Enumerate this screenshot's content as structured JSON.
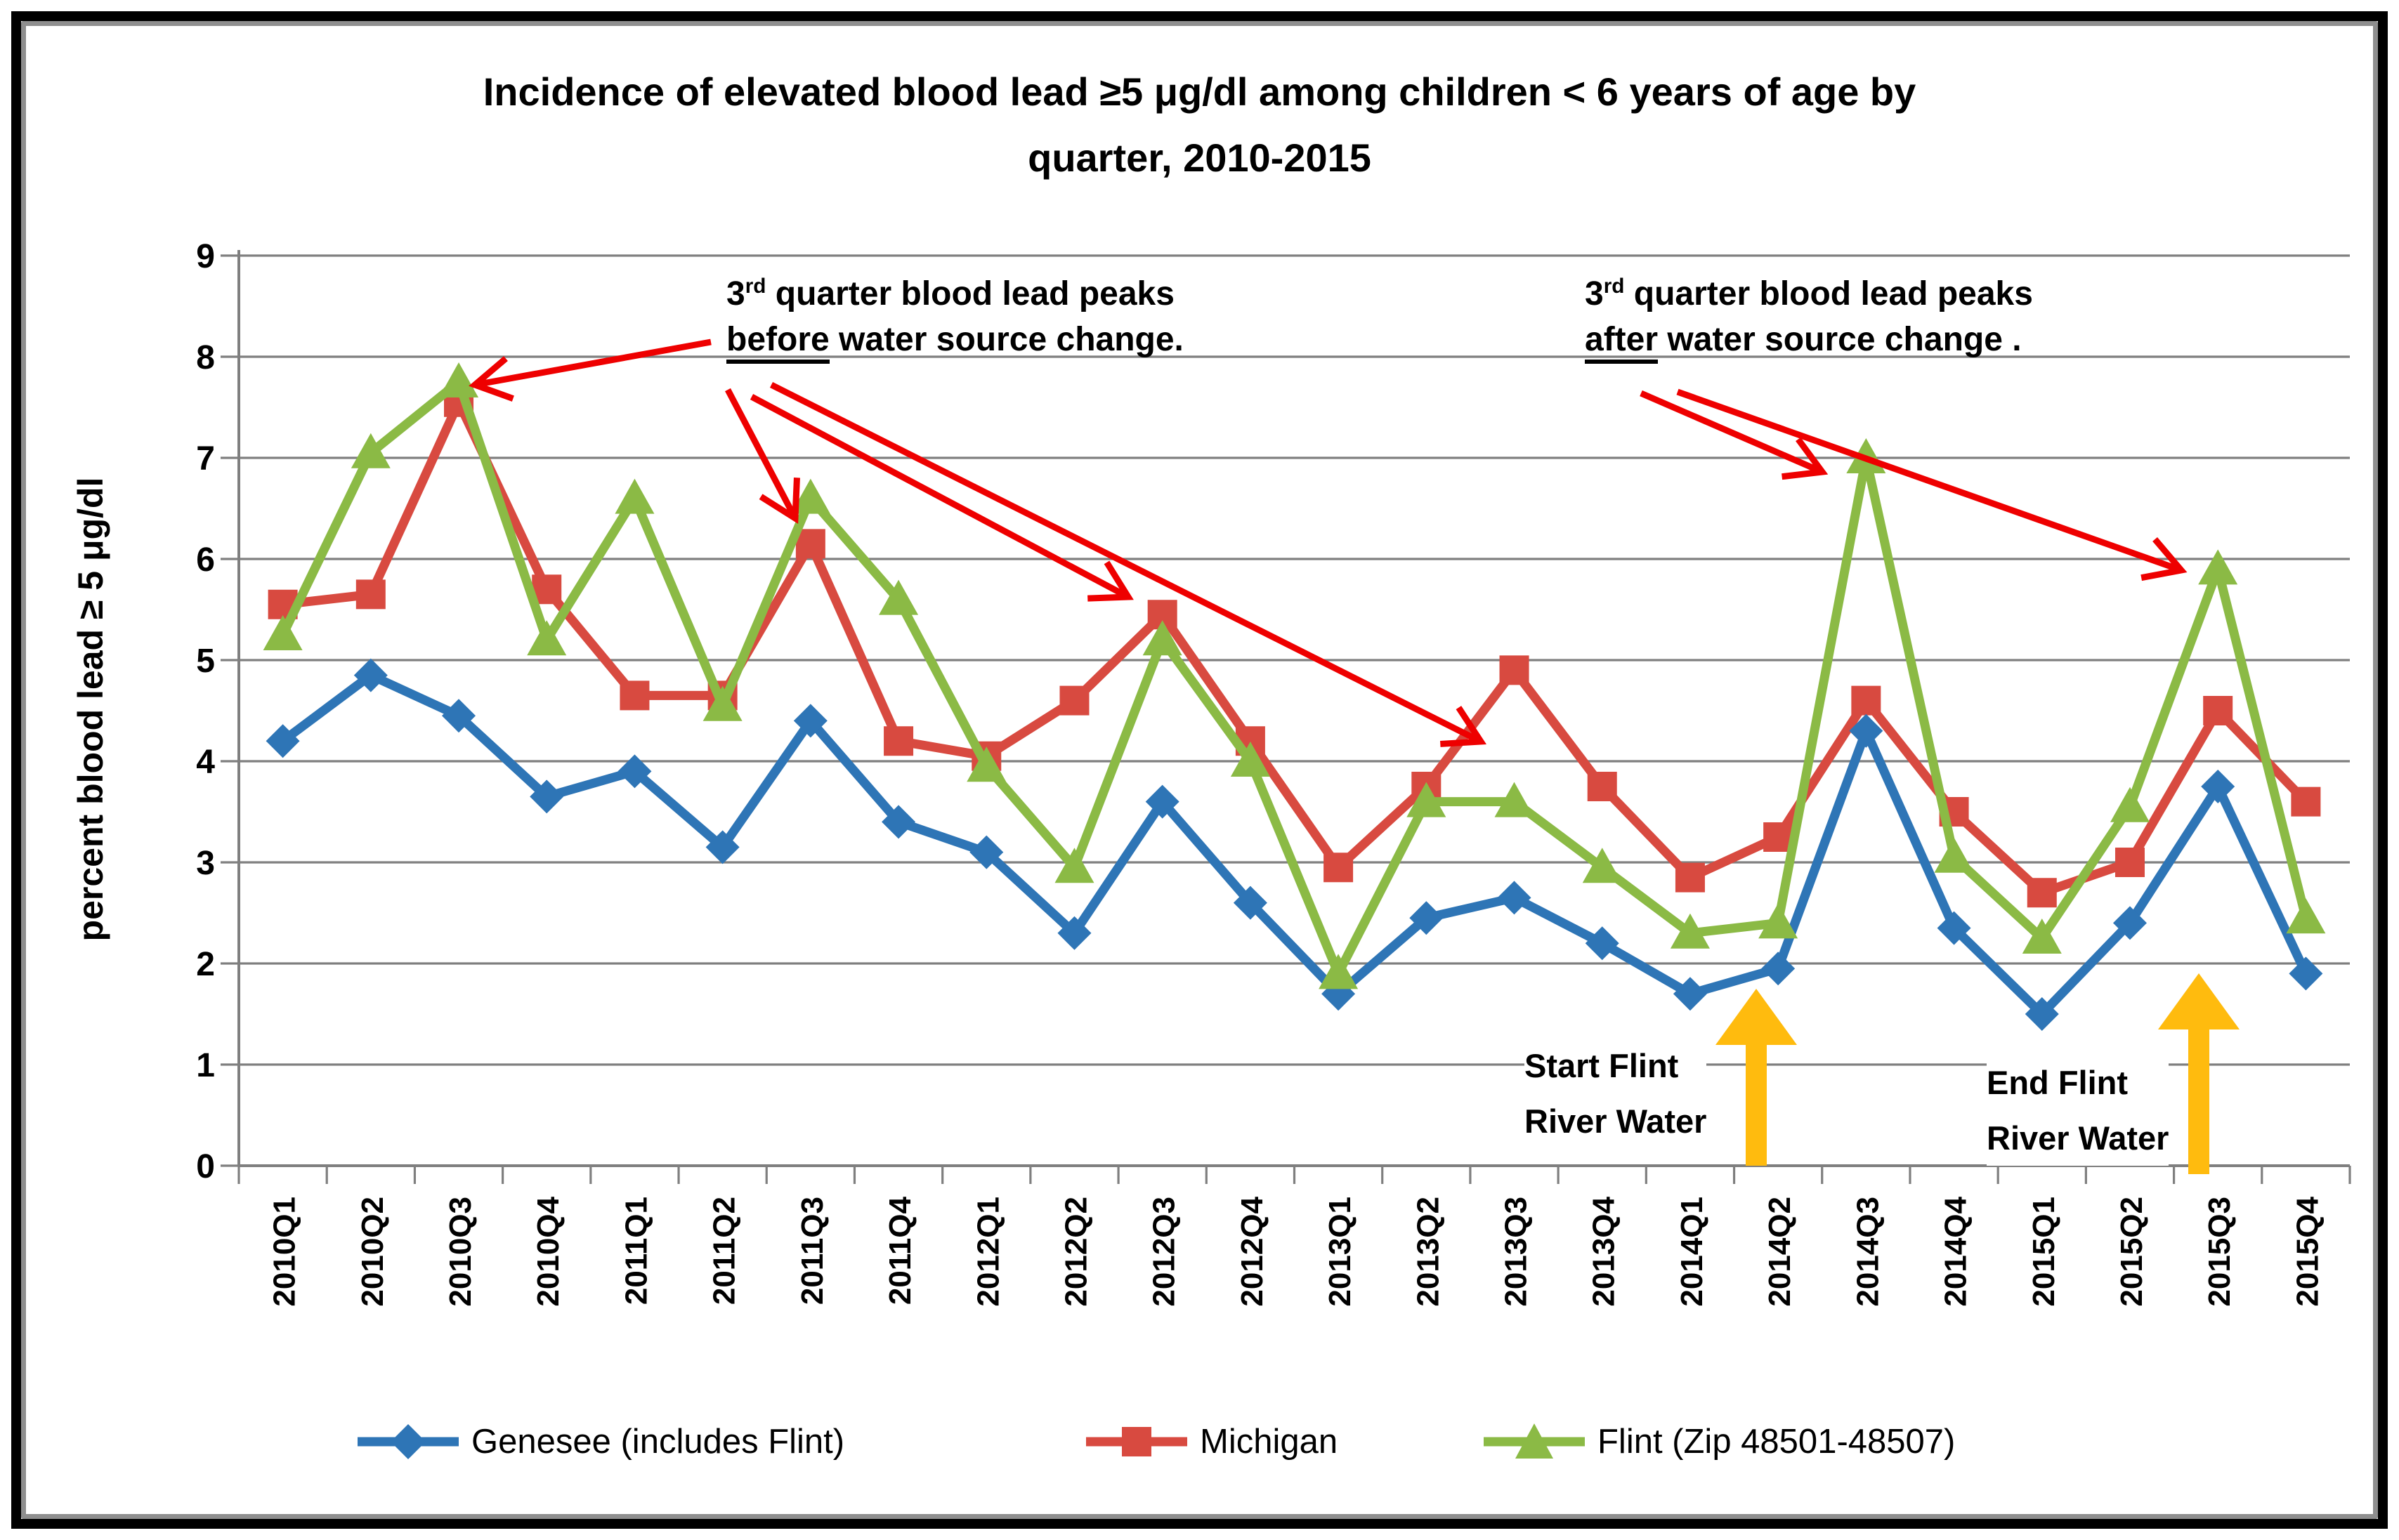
{
  "title": {
    "line1": "Incidence of elevated blood lead ≥5 μg/dl among children < 6 years of age by",
    "line2": "quarter, 2010-2015"
  },
  "axes": {
    "y_title": "percent blood lead ≥ 5 μg/dl",
    "y_ticks": [
      "0",
      "1",
      "2",
      "3",
      "4",
      "5",
      "6",
      "7",
      "8",
      "9"
    ]
  },
  "chart_data": {
    "type": "line",
    "categories": [
      "2010Q1",
      "2010Q2",
      "2010Q3",
      "2010Q4",
      "2011Q1",
      "2011Q2",
      "2011Q3",
      "2011Q4",
      "2012Q1",
      "2012Q2",
      "2012Q3",
      "2012Q4",
      "2013Q1",
      "2013Q2",
      "2013Q3",
      "2013Q4",
      "2014Q1",
      "2014Q2",
      "2014Q3",
      "2014Q4",
      "2015Q1",
      "2015Q2",
      "2015Q3",
      "2015Q4"
    ],
    "series": [
      {
        "name": "Genesee (includes Flint)",
        "marker": "diamond",
        "color": "#2E75B6",
        "values": [
          4.2,
          4.85,
          4.45,
          3.65,
          3.9,
          3.15,
          4.4,
          3.4,
          3.1,
          2.3,
          3.6,
          2.6,
          1.7,
          2.45,
          2.65,
          2.2,
          1.7,
          1.95,
          4.3,
          2.35,
          1.5,
          2.4,
          3.75,
          1.9
        ]
      },
      {
        "name": "Michigan",
        "marker": "square",
        "color": "#D84A40",
        "values": [
          5.55,
          5.65,
          7.55,
          5.7,
          4.65,
          4.65,
          6.15,
          4.2,
          4.05,
          4.6,
          5.45,
          4.2,
          2.95,
          3.75,
          4.9,
          3.75,
          2.85,
          3.25,
          4.6,
          3.5,
          2.7,
          3.0,
          4.5,
          3.6
        ]
      },
      {
        "name": "Flint (Zip 48501-48507)",
        "marker": "triangle",
        "color": "#8BBA45",
        "values": [
          5.25,
          7.05,
          7.75,
          5.2,
          6.6,
          4.55,
          6.6,
          5.6,
          3.95,
          2.95,
          5.2,
          4.0,
          1.9,
          3.6,
          3.6,
          2.95,
          2.3,
          2.4,
          7.0,
          3.05,
          2.25,
          3.55,
          5.9,
          2.45
        ]
      }
    ],
    "title": "Incidence of elevated blood lead ≥5 μg/dl among children < 6 years of age by quarter, 2010-2015",
    "xlabel": "",
    "ylabel": "percent blood lead ≥ 5 μg/dl",
    "ylim": [
      0,
      9
    ],
    "ytick_step": 1,
    "grid": "horizontal",
    "legend_position": "bottom"
  },
  "annotations": {
    "arrow_color": "#EE0000",
    "big_arrow_color": "#FFBB0E",
    "before": {
      "num": "3",
      "sup": "rd",
      "line1_rest": " quarter  blood lead peaks",
      "underline_word": "before",
      "line2_rest": " water source change."
    },
    "after": {
      "num": "3",
      "sup": "rd",
      "line1_rest": " quarter blood lead peaks",
      "underline_word": "after",
      "line2_rest": " water source change ."
    },
    "start_flint": {
      "line1": "Start Flint",
      "line2": "River Water"
    },
    "end_flint": {
      "line1": "End Flint",
      "line2": "River Water"
    }
  }
}
